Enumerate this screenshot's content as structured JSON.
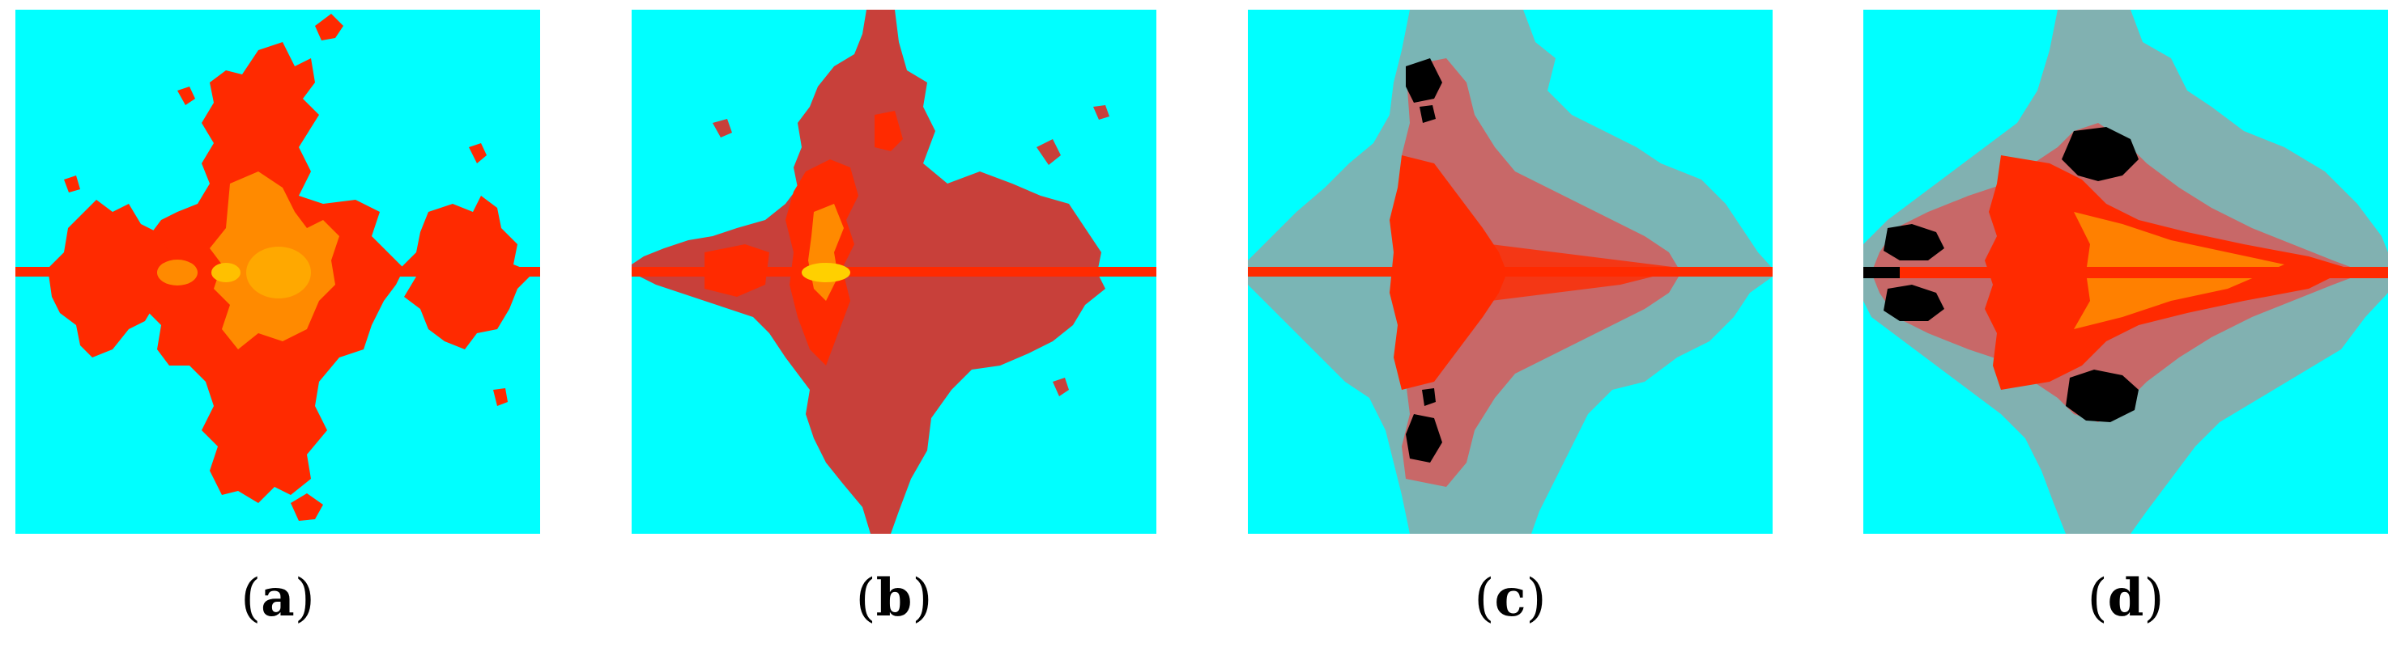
{
  "colors": {
    "background": "#00FFFF",
    "red": "#FF2A00",
    "orange": "#FF8A00",
    "dark_red": "#C8403A",
    "gray": "#808080",
    "black": "#000000",
    "yellow": "#FFD000"
  },
  "panels": [
    {
      "id": "a",
      "caption_open": "(",
      "caption_letter": "a",
      "caption_close": ")"
    },
    {
      "id": "b",
      "caption_open": "(",
      "caption_letter": "b",
      "caption_close": ")"
    },
    {
      "id": "c",
      "caption_open": "(",
      "caption_letter": "c",
      "caption_close": ")"
    },
    {
      "id": "d",
      "caption_open": "(",
      "caption_letter": "d",
      "caption_close": ")"
    }
  ]
}
